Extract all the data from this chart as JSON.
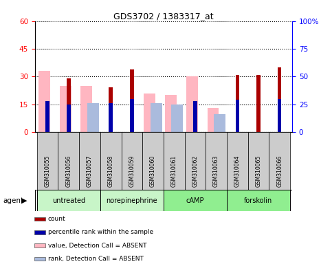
{
  "title": "GDS3702 / 1383317_at",
  "samples": [
    "GSM310055",
    "GSM310056",
    "GSM310057",
    "GSM310058",
    "GSM310059",
    "GSM310060",
    "GSM310061",
    "GSM310062",
    "GSM310063",
    "GSM310064",
    "GSM310065",
    "GSM310066"
  ],
  "count_values": [
    null,
    29,
    null,
    24,
    34,
    null,
    null,
    null,
    null,
    31,
    31,
    35
  ],
  "percentile_values": [
    28,
    25,
    null,
    26,
    30,
    null,
    null,
    28,
    null,
    29,
    null,
    30
  ],
  "absent_value_values": [
    33,
    25,
    25,
    null,
    null,
    21,
    20,
    30,
    13,
    null,
    null,
    null
  ],
  "absent_rank_values": [
    null,
    null,
    26,
    null,
    null,
    26,
    25,
    null,
    16,
    null,
    null,
    null
  ],
  "groups": [
    {
      "label": "untreated",
      "start": 0,
      "end": 2,
      "color": "#C8F5C8"
    },
    {
      "label": "norepinephrine",
      "start": 3,
      "end": 5,
      "color": "#C8F5C8"
    },
    {
      "label": "cAMP",
      "start": 6,
      "end": 8,
      "color": "#90EE90"
    },
    {
      "label": "forskolin",
      "start": 9,
      "end": 11,
      "color": "#90EE90"
    }
  ],
  "ylim_left": [
    0,
    60
  ],
  "ylim_right": [
    0,
    100
  ],
  "left_ticks": [
    0,
    15,
    30,
    45,
    60
  ],
  "right_ticks": [
    0,
    25,
    50,
    75,
    100
  ],
  "right_tick_labels": [
    "0",
    "25",
    "50",
    "75",
    "100%"
  ],
  "count_color": "#AA0000",
  "percentile_color": "#0000AA",
  "absent_value_color": "#FFB6C1",
  "absent_rank_color": "#AABBDD",
  "bg_plot": "#FFFFFF",
  "label_area_color": "#CCCCCC",
  "agent_label": "agent",
  "legend_items": [
    {
      "color": "#AA0000",
      "label": "count"
    },
    {
      "color": "#0000AA",
      "label": "percentile rank within the sample"
    },
    {
      "color": "#FFB6C1",
      "label": "value, Detection Call = ABSENT"
    },
    {
      "color": "#AABBDD",
      "label": "rank, Detection Call = ABSENT"
    }
  ]
}
